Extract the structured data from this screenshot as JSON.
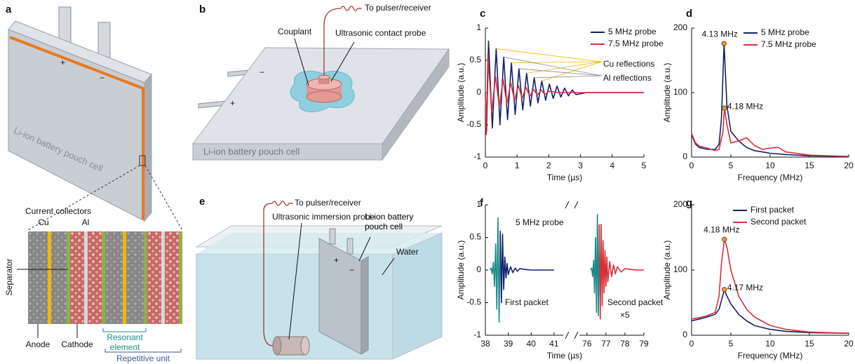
{
  "panels": {
    "a": {
      "label": "a",
      "cell": "Li-ion battery pouch cell",
      "plus": "+",
      "minus": "−",
      "current_collectors": "Current collectors",
      "cu": "Cu",
      "al": "Al",
      "separator": "Separator",
      "anode": "Anode",
      "cathode": "Cathode",
      "resonant_element": "Resonant element",
      "repetitive_unit": "Repetitive unit"
    },
    "b": {
      "label": "b",
      "to_pulser": "To pulser/receiver",
      "couplant": "Couplant",
      "probe": "Ultrasonic contact probe",
      "cell": "Li-ion battery pouch cell",
      "minus": "−",
      "plus": "+"
    },
    "e": {
      "label": "e",
      "to_pulser": "To pulser/receiver",
      "probe": "Ultrasonic immersion probe",
      "cell": "Li-ion battery pouch cell",
      "water": "Water",
      "plus": "+",
      "minus": "−"
    }
  },
  "chart_data": [
    {
      "type": "line",
      "panel_label": "c",
      "xlabel": "Time (µs)",
      "ylabel": "Amplitude (a.u.)",
      "xlim": [
        0,
        5
      ],
      "xticks": [
        0,
        1,
        2,
        3,
        4,
        5
      ],
      "ylim": [
        -1,
        1
      ],
      "yticks": [
        -1,
        -0.5,
        0,
        0.5,
        1
      ],
      "legend": "upper right",
      "series": [
        {
          "name": "5 MHz probe",
          "color": "#14206e",
          "x": [
            0,
            0.04,
            0.1,
            0.22,
            0.34,
            0.46,
            0.58,
            0.7,
            0.82,
            0.94,
            1.06,
            1.18,
            1.3,
            1.42,
            1.54,
            1.66,
            1.78,
            1.9,
            2.02,
            2.14,
            2.26,
            2.38,
            2.5,
            2.62,
            2.74,
            2.86,
            3.2,
            5
          ],
          "values": [
            0,
            -0.6,
            0.8,
            -0.55,
            0.68,
            -0.5,
            0.55,
            -0.42,
            0.46,
            -0.34,
            0.37,
            -0.27,
            0.3,
            -0.21,
            0.23,
            -0.16,
            0.18,
            -0.12,
            0.13,
            -0.09,
            0.1,
            -0.07,
            0.07,
            -0.05,
            0.04,
            -0.03,
            0,
            0
          ]
        },
        {
          "name": "7.5 MHz probe",
          "color": "#d7303a",
          "x": [
            0,
            0.03,
            0.08,
            0.2,
            0.32,
            0.44,
            0.56,
            0.68,
            0.8,
            0.92,
            1.04,
            1.16,
            1.28,
            1.4,
            1.52,
            1.64,
            1.76,
            1.88,
            2.0,
            2.3,
            5
          ],
          "values": [
            0,
            -0.65,
            0.6,
            -0.3,
            0.25,
            -0.22,
            0.2,
            -0.17,
            0.15,
            -0.12,
            0.11,
            -0.09,
            0.08,
            -0.06,
            0.05,
            -0.04,
            0.04,
            -0.03,
            0.02,
            0,
            0
          ]
        }
      ],
      "annotations": [
        {
          "text": "Cu reflections",
          "color": "#f0b400"
        },
        {
          "text": "Al reflections",
          "color": "#8a8a8a"
        }
      ]
    },
    {
      "type": "line",
      "panel_label": "d",
      "xlabel": "Frequency (MHz)",
      "ylabel": "Amplitude (a.u.)",
      "xlim": [
        0,
        20
      ],
      "xticks": [
        0,
        5,
        10,
        15,
        20
      ],
      "ylim": [
        0,
        200
      ],
      "yticks": [
        0,
        100,
        200
      ],
      "legend": "upper right",
      "series": [
        {
          "name": "5 MHz probe",
          "color": "#14206e",
          "x": [
            0,
            0.5,
            1,
            2,
            3,
            3.5,
            3.8,
            4.13,
            4.5,
            5,
            6,
            7,
            8,
            9,
            10,
            12,
            15,
            20
          ],
          "values": [
            35,
            20,
            15,
            12,
            12,
            20,
            60,
            176,
            80,
            40,
            25,
            15,
            10,
            8,
            6,
            4,
            2,
            1
          ]
        },
        {
          "name": "7.5 MHz probe",
          "color": "#d7303a",
          "x": [
            0,
            0.5,
            1,
            2,
            3,
            3.5,
            4,
            4.18,
            4.5,
            5,
            6,
            7,
            8,
            9,
            10,
            11,
            12,
            15,
            20
          ],
          "values": [
            37,
            22,
            17,
            14,
            10,
            12,
            40,
            76,
            50,
            22,
            25,
            30,
            18,
            12,
            14,
            15,
            8,
            3,
            1
          ]
        }
      ],
      "annotations": [
        {
          "label": "4.13 MHz",
          "x": 4.13,
          "y": 176,
          "color": "#14206e"
        },
        {
          "label": "4.18 MHz",
          "x": 4.18,
          "y": 76,
          "color": "#d7303a"
        }
      ]
    },
    {
      "type": "line",
      "panel_label": "f",
      "xlabel": "Time (µs)",
      "ylabel": "Amplitude (a.u.)",
      "xlim_segments": [
        [
          38,
          41.4
        ],
        [
          75.6,
          79
        ]
      ],
      "xticks": [
        38,
        39,
        40,
        41,
        76,
        77,
        78,
        79
      ],
      "ylim": [
        -1,
        1
      ],
      "yticks": [
        -1,
        -0.5,
        0,
        0.5,
        1
      ],
      "series": [
        {
          "color": "#1a8c8c",
          "x": [
            38.2,
            38.25,
            38.3,
            38.35,
            38.4,
            38.45,
            38.5,
            38.55,
            38.6,
            38.65
          ],
          "values": [
            0,
            0.03,
            -0.06,
            0.12,
            -0.25,
            0.4,
            -0.6,
            0.8,
            -0.8,
            0.6
          ]
        },
        {
          "color": "#14206e",
          "x": [
            38.65,
            38.7,
            38.75,
            38.8,
            38.85,
            38.9,
            38.95,
            39,
            39.1,
            39.2,
            39.3,
            39.4,
            39.5,
            39.7,
            40,
            40.5,
            41
          ],
          "values": [
            0.6,
            -0.5,
            0.55,
            -0.3,
            0.2,
            -0.12,
            0.1,
            -0.07,
            0.05,
            -0.04,
            0.03,
            -0.02,
            0.02,
            0.01,
            0,
            0,
            0
          ]
        },
        {
          "color": "#1a8c8c",
          "x": [
            76.2,
            76.25,
            76.3,
            76.35,
            76.4,
            76.45,
            76.5,
            76.55,
            76.6,
            76.65
          ],
          "values": [
            0,
            0.03,
            -0.1,
            0.15,
            -0.35,
            0.5,
            -0.65,
            0.85,
            -0.7,
            0.7
          ]
        },
        {
          "color": "#d7303a",
          "x": [
            76.65,
            76.7,
            76.75,
            76.8,
            76.85,
            76.9,
            76.95,
            77,
            77.05,
            77.1,
            77.2,
            77.3,
            77.4,
            77.5,
            77.6,
            77.8,
            78,
            78.3,
            78.6,
            79
          ],
          "values": [
            0.7,
            -0.75,
            0.7,
            -0.55,
            0.45,
            -0.35,
            0.3,
            -0.25,
            0.2,
            -0.18,
            0.13,
            -0.1,
            0.08,
            -0.06,
            0.05,
            -0.03,
            0.02,
            0.01,
            0,
            0
          ]
        }
      ],
      "annotations": [
        {
          "text": "5 MHz probe"
        },
        {
          "text": "First packet"
        },
        {
          "text": "Second packet"
        },
        {
          "text": "×5"
        }
      ]
    },
    {
      "type": "line",
      "panel_label": "g",
      "xlabel": "Frequency (MHz)",
      "ylabel": "Amplitude (a.u.)",
      "xlim": [
        0,
        20
      ],
      "xticks": [
        0,
        5,
        10,
        15,
        20
      ],
      "ylim": [
        0,
        200
      ],
      "yticks": [
        0,
        100,
        200
      ],
      "legend": "upper right",
      "series": [
        {
          "name": "First packet",
          "color": "#14206e",
          "x": [
            0,
            1,
            2,
            3,
            3.5,
            4,
            4.17,
            4.5,
            5,
            6,
            7,
            8,
            10,
            12,
            15,
            20
          ],
          "values": [
            22,
            25,
            28,
            32,
            40,
            62,
            70,
            60,
            48,
            32,
            22,
            15,
            9,
            6,
            4,
            3
          ]
        },
        {
          "name": "Second packet",
          "color": "#d7303a",
          "x": [
            0,
            1,
            2,
            3,
            3.5,
            3.8,
            4.18,
            4.5,
            5,
            6,
            7,
            8,
            10,
            12,
            15,
            20
          ],
          "values": [
            25,
            27,
            30,
            35,
            60,
            110,
            147,
            135,
            100,
            60,
            40,
            28,
            15,
            9,
            5,
            3
          ]
        }
      ],
      "annotations": [
        {
          "label": "4.18 MHz",
          "x": 4.18,
          "y": 147,
          "color": "#d7303a"
        },
        {
          "label": "4.17 MHz",
          "x": 4.17,
          "y": 70,
          "color": "#14206e"
        }
      ]
    }
  ]
}
